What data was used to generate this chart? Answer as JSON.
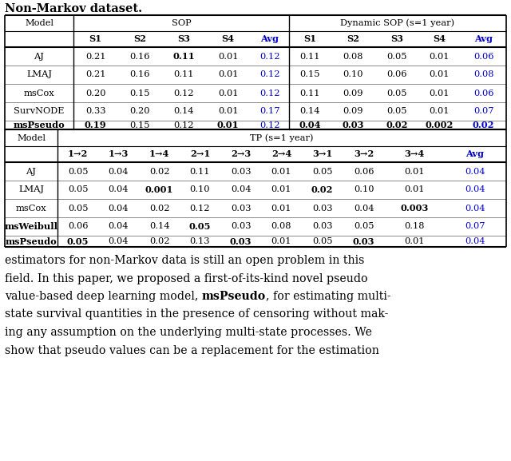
{
  "title": "Non-Markov dataset.",
  "t1_header1_model": "Model",
  "t1_header1_sop": "SOP",
  "t1_header1_dsop": "Dynamic SOP (s=1 year)",
  "t1_header2": [
    "S1",
    "S2",
    "S3",
    "S4",
    "Avg",
    "S1",
    "S2",
    "S3",
    "S4",
    "Avg"
  ],
  "t1_rows": [
    [
      "AJ",
      "0.21",
      "0.16",
      "0.11",
      "0.01",
      "0.12",
      "0.11",
      "0.08",
      "0.05",
      "0.01",
      "0.06"
    ],
    [
      "LMAJ",
      "0.21",
      "0.16",
      "0.11",
      "0.01",
      "0.12",
      "0.15",
      "0.10",
      "0.06",
      "0.01",
      "0.08"
    ],
    [
      "msCox",
      "0.20",
      "0.15",
      "0.12",
      "0.01",
      "0.12",
      "0.11",
      "0.09",
      "0.05",
      "0.01",
      "0.06"
    ],
    [
      "SurvNODE",
      "0.33",
      "0.20",
      "0.14",
      "0.01",
      "0.17",
      "0.14",
      "0.09",
      "0.05",
      "0.01",
      "0.07"
    ],
    [
      "msPseudo",
      "0.19",
      "0.15",
      "0.12",
      "0.01",
      "0.12",
      "0.04",
      "0.03",
      "0.02",
      "0.002",
      "0.02"
    ]
  ],
  "t1_bold": {
    "0": [
      3
    ],
    "4": [
      0,
      1,
      4,
      6,
      7,
      8,
      9,
      10
    ]
  },
  "t2_header1_model": "Model",
  "t2_header1_tp": "TP (s=1 year)",
  "t2_header2": [
    "1→2",
    "1→3",
    "1→4",
    "2→1",
    "2→3",
    "2→4",
    "3→1",
    "3→2",
    "3→4",
    "Avg"
  ],
  "t2_rows": [
    [
      "AJ",
      "0.05",
      "0.04",
      "0.02",
      "0.11",
      "0.03",
      "0.01",
      "0.05",
      "0.06",
      "0.01",
      "0.04"
    ],
    [
      "LMAJ",
      "0.05",
      "0.04",
      "0.001",
      "0.10",
      "0.04",
      "0.01",
      "0.02",
      "0.10",
      "0.01",
      "0.04"
    ],
    [
      "msCox",
      "0.05",
      "0.04",
      "0.02",
      "0.12",
      "0.03",
      "0.01",
      "0.03",
      "0.04",
      "0.003",
      "0.04"
    ],
    [
      "msWeibull",
      "0.06",
      "0.04",
      "0.14",
      "0.05",
      "0.03",
      "0.08",
      "0.03",
      "0.05",
      "0.18",
      "0.07"
    ],
    [
      "msPseudo",
      "0.05",
      "0.04",
      "0.02",
      "0.13",
      "0.03",
      "0.01",
      "0.05",
      "0.03",
      "0.01",
      "0.04"
    ]
  ],
  "t2_bold": {
    "1": [
      3,
      7
    ],
    "2": [
      9
    ],
    "3": [
      0,
      4
    ],
    "4": [
      0,
      1,
      5,
      8
    ]
  },
  "para_lines": [
    [
      "estimators for non-Markov data is still an open problem in this"
    ],
    [
      "field. In this paper, we proposed a first-of-its-kind novel pseudo"
    ],
    [
      "value-based deep learning model, ",
      "msPseudo",
      ", for estimating multi-"
    ],
    [
      "state survival quantities in the presence of censoring without mak-"
    ],
    [
      "ing any assumption on the underlying multi-state processes. We"
    ],
    [
      "show that pseudo values can be a replacement for the estimation"
    ]
  ],
  "blue": "#0000cc",
  "black": "#000000",
  "white": "#ffffff"
}
